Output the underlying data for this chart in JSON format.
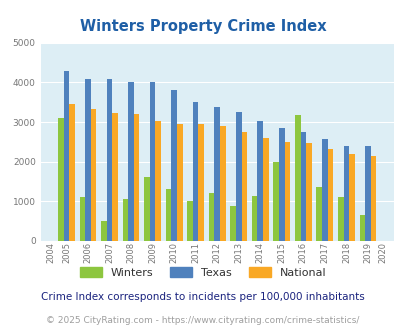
{
  "title": "Winters Property Crime Index",
  "years": [
    2004,
    2005,
    2006,
    2007,
    2008,
    2009,
    2010,
    2011,
    2012,
    2013,
    2014,
    2015,
    2016,
    2017,
    2018,
    2019,
    2020
  ],
  "winters": [
    null,
    3100,
    1100,
    500,
    1050,
    1620,
    1300,
    1000,
    1200,
    880,
    1130,
    2000,
    3180,
    1350,
    1120,
    650,
    null
  ],
  "texas": [
    null,
    4300,
    4080,
    4100,
    4000,
    4020,
    3800,
    3500,
    3380,
    3250,
    3040,
    2840,
    2760,
    2570,
    2390,
    2390,
    null
  ],
  "national": [
    null,
    3460,
    3340,
    3240,
    3210,
    3040,
    2950,
    2940,
    2890,
    2740,
    2590,
    2490,
    2460,
    2330,
    2190,
    2140,
    null
  ],
  "winters_color": "#8dc63f",
  "texas_color": "#4f81bd",
  "national_color": "#f9a825",
  "bg_color": "#ddeef5",
  "ylim": [
    0,
    5000
  ],
  "yticks": [
    0,
    1000,
    2000,
    3000,
    4000,
    5000
  ],
  "legend_labels": [
    "Winters",
    "Texas",
    "National"
  ],
  "footnote1": "Crime Index corresponds to incidents per 100,000 inhabitants",
  "footnote2": "© 2025 CityRating.com - https://www.cityrating.com/crime-statistics/",
  "title_color": "#1f5fa6",
  "footnote1_color": "#1a237e",
  "footnote2_color": "#9e9e9e"
}
